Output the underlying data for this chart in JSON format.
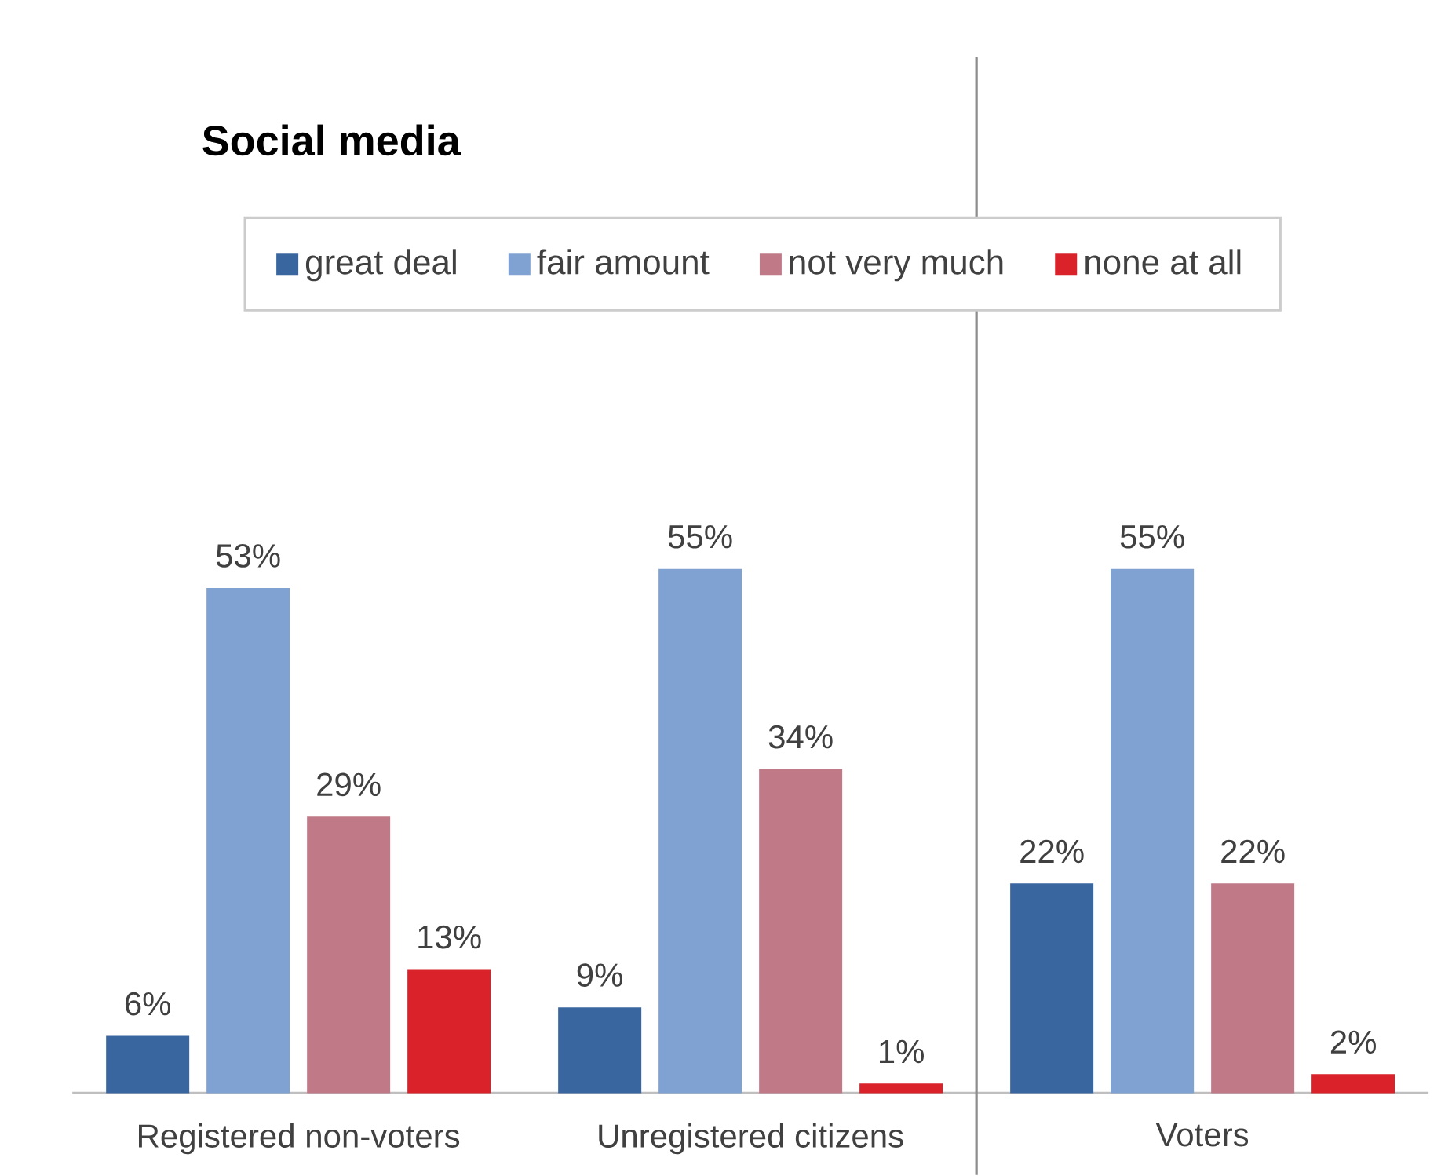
{
  "chart_data": {
    "type": "bar",
    "title": "Social media",
    "categories": [
      "Registered non-voters",
      "Unregistered citizens",
      "Voters"
    ],
    "series": [
      {
        "name": "great deal",
        "color": "#3a66a0",
        "values": [
          6,
          9,
          22
        ],
        "value_labels": [
          "6%",
          "9%",
          "22%"
        ]
      },
      {
        "name": "fair amount",
        "color": "#7fa2d2",
        "values": [
          53,
          55,
          55
        ],
        "value_labels": [
          "53%",
          "55%",
          "55%"
        ]
      },
      {
        "name": "not very much",
        "color": "#c07a87",
        "values": [
          29,
          34,
          22
        ],
        "value_labels": [
          "29%",
          "34%",
          "22%"
        ]
      },
      {
        "name": "none at all",
        "color": "#d9222a",
        "values": [
          13,
          1,
          2
        ],
        "value_labels": [
          "13%",
          "1%",
          "2%"
        ]
      }
    ],
    "legend": "top"
  }
}
